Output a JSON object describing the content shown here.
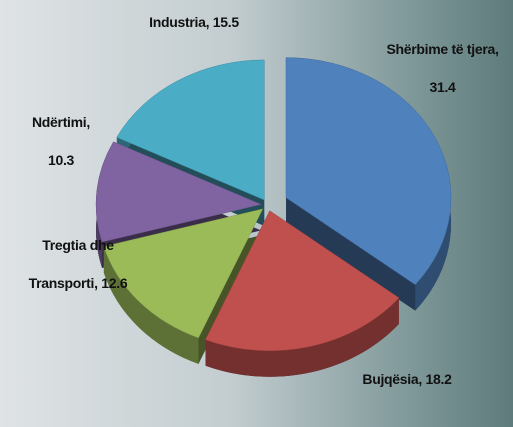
{
  "chart_data": {
    "type": "pie",
    "categories": [
      "Shërbime të tjera,",
      "Bujqësia,",
      "Tregtia dhe Transporti,",
      "Ndërtimi,",
      "Industria,"
    ],
    "values": [
      31.4,
      18.2,
      12.6,
      10.3,
      15.5
    ],
    "colors": [
      "#4f81bd",
      "#c0504d",
      "#9bbb59",
      "#8064a2",
      "#4bacc6"
    ],
    "exploded": [
      0
    ]
  }
}
